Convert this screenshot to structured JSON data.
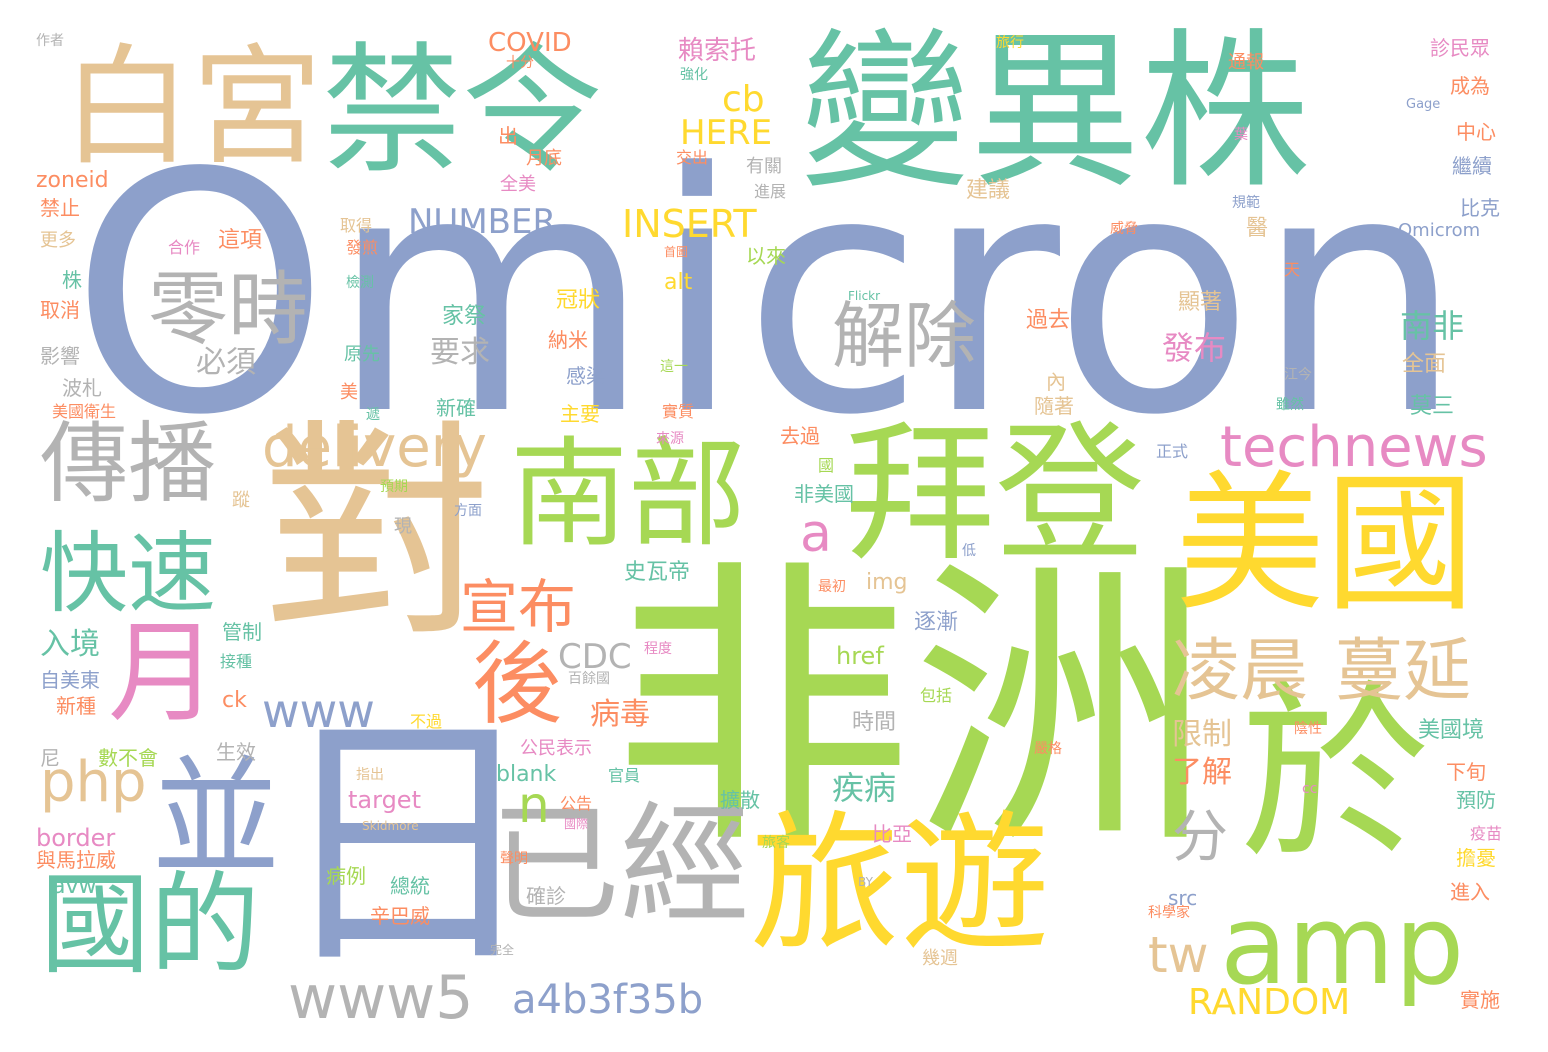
{
  "palette": {
    "teal": "#66c2a5",
    "orange": "#fc8d62",
    "blue": "#8da0cb",
    "pink": "#e78ac3",
    "green": "#a6d854",
    "yellow": "#ffd92f",
    "tan": "#e5c494",
    "gray": "#b3b3b3"
  },
  "words": [
    {
      "text": "Omicron",
      "color": "blue"
    },
    {
      "text": "變異株",
      "color": "teal"
    },
    {
      "text": "禁令",
      "color": "teal"
    },
    {
      "text": "白宮",
      "color": "tan"
    },
    {
      "text": "非洲",
      "color": "green"
    },
    {
      "text": "對",
      "color": "tan"
    },
    {
      "text": "日",
      "color": "blue"
    },
    {
      "text": "美國",
      "color": "yellow"
    },
    {
      "text": "拜登",
      "color": "green"
    },
    {
      "text": "南部",
      "color": "green"
    },
    {
      "text": "旅遊",
      "color": "yellow"
    },
    {
      "text": "於",
      "color": "green"
    },
    {
      "text": "已經",
      "color": "gray"
    },
    {
      "text": "並",
      "color": "blue"
    },
    {
      "text": "國的",
      "color": "teal"
    },
    {
      "text": "傳播",
      "color": "gray"
    },
    {
      "text": "快速",
      "color": "teal"
    },
    {
      "text": "月",
      "color": "pink"
    },
    {
      "text": "amp",
      "color": "green"
    },
    {
      "text": "零時",
      "color": "gray"
    },
    {
      "text": "解除",
      "color": "gray"
    },
    {
      "text": "宣布",
      "color": "orange"
    },
    {
      "text": "後",
      "color": "orange"
    },
    {
      "text": "凌晨",
      "color": "tan"
    },
    {
      "text": "蔓延",
      "color": "tan"
    },
    {
      "text": "technews",
      "color": "pink"
    },
    {
      "text": "delivery",
      "color": "tan"
    },
    {
      "text": "www5",
      "color": "gray"
    },
    {
      "text": "www",
      "color": "blue"
    },
    {
      "text": "php",
      "color": "tan"
    },
    {
      "text": "a4b3f35b",
      "color": "blue"
    },
    {
      "text": "INSERT",
      "color": "yellow"
    },
    {
      "text": "NUMBER",
      "color": "blue"
    },
    {
      "text": "RANDOM",
      "color": "yellow"
    },
    {
      "text": "CDC",
      "color": "gray"
    },
    {
      "text": "cb",
      "color": "yellow"
    },
    {
      "text": "HERE",
      "color": "yellow"
    },
    {
      "text": "tw",
      "color": "tan"
    },
    {
      "text": "分",
      "color": "gray"
    },
    {
      "text": "n",
      "color": "green"
    },
    {
      "text": "a",
      "color": "pink"
    },
    {
      "text": "COVID",
      "color": "orange"
    },
    {
      "text": "賴索托",
      "color": "pink"
    },
    {
      "text": "病毒",
      "color": "orange"
    },
    {
      "text": "疾病",
      "color": "teal"
    },
    {
      "text": "發布",
      "color": "pink"
    },
    {
      "text": "南非",
      "color": "teal"
    },
    {
      "text": "入境",
      "color": "teal"
    },
    {
      "text": "要求",
      "color": "gray"
    },
    {
      "text": "必須",
      "color": "gray"
    },
    {
      "text": "限制",
      "color": "tan"
    },
    {
      "text": "了解",
      "color": "orange"
    },
    {
      "text": "zoneid",
      "color": "orange"
    },
    {
      "text": "target",
      "color": "pink"
    },
    {
      "text": "border",
      "color": "pink"
    },
    {
      "text": "blank",
      "color": "teal"
    },
    {
      "text": "img",
      "color": "tan"
    },
    {
      "text": "href",
      "color": "green"
    },
    {
      "text": "alt",
      "color": "yellow"
    },
    {
      "text": "avw",
      "color": "teal"
    },
    {
      "text": "src",
      "color": "blue"
    },
    {
      "text": "ck",
      "color": "orange"
    },
    {
      "text": "Omicrom",
      "color": "blue"
    },
    {
      "text": "Gage",
      "color": "blue"
    },
    {
      "text": "Flickr",
      "color": "teal"
    },
    {
      "text": "Skidmore",
      "color": "tan"
    },
    {
      "text": "BY",
      "color": "gray"
    },
    {
      "text": "cc",
      "color": "pink"
    },
    {
      "text": "作者",
      "color": "gray"
    },
    {
      "text": "十分",
      "color": "orange"
    },
    {
      "text": "強化",
      "color": "teal"
    },
    {
      "text": "旅行",
      "color": "yellow"
    },
    {
      "text": "通報",
      "color": "orange"
    },
    {
      "text": "診民眾",
      "color": "pink"
    },
    {
      "text": "成為",
      "color": "orange"
    },
    {
      "text": "中心",
      "color": "orange"
    },
    {
      "text": "繼續",
      "color": "blue"
    },
    {
      "text": "比克",
      "color": "blue"
    },
    {
      "text": "出",
      "color": "orange"
    },
    {
      "text": "月底",
      "color": "orange"
    },
    {
      "text": "交出",
      "color": "orange"
    },
    {
      "text": "有關",
      "color": "gray"
    },
    {
      "text": "進展",
      "color": "gray"
    },
    {
      "text": "全美",
      "color": "pink"
    },
    {
      "text": "禁止",
      "color": "orange"
    },
    {
      "text": "更多",
      "color": "tan"
    },
    {
      "text": "合作",
      "color": "pink"
    },
    {
      "text": "這項",
      "color": "orange"
    },
    {
      "text": "取得",
      "color": "tan"
    },
    {
      "text": "發煎",
      "color": "orange"
    },
    {
      "text": "首圖",
      "color": "orange"
    },
    {
      "text": "以來",
      "color": "green"
    },
    {
      "text": "建議",
      "color": "tan"
    },
    {
      "text": "威脅",
      "color": "orange"
    },
    {
      "text": "規範",
      "color": "blue"
    },
    {
      "text": "葉",
      "color": "pink"
    },
    {
      "text": "株",
      "color": "teal"
    },
    {
      "text": "取消",
      "color": "orange"
    },
    {
      "text": "影響",
      "color": "gray"
    },
    {
      "text": "檢測",
      "color": "teal"
    },
    {
      "text": "冠狀",
      "color": "yellow"
    },
    {
      "text": "家祭",
      "color": "teal"
    },
    {
      "text": "納米",
      "color": "orange"
    },
    {
      "text": "原先",
      "color": "teal"
    },
    {
      "text": "感染",
      "color": "blue"
    },
    {
      "text": "這一",
      "color": "green"
    },
    {
      "text": "過去",
      "color": "orange"
    },
    {
      "text": "內",
      "color": "tan"
    },
    {
      "text": "顯著",
      "color": "tan"
    },
    {
      "text": "醫",
      "color": "tan"
    },
    {
      "text": "天",
      "color": "orange"
    },
    {
      "text": "江今",
      "color": "gray"
    },
    {
      "text": "全面",
      "color": "tan"
    },
    {
      "text": "波札",
      "color": "gray"
    },
    {
      "text": "美國衛生",
      "color": "orange"
    },
    {
      "text": "美",
      "color": "orange"
    },
    {
      "text": "遞",
      "color": "teal"
    },
    {
      "text": "新確",
      "color": "teal"
    },
    {
      "text": "主要",
      "color": "yellow"
    },
    {
      "text": "實質",
      "color": "orange"
    },
    {
      "text": "隨著",
      "color": "tan"
    },
    {
      "text": "雖然",
      "color": "teal"
    },
    {
      "text": "莫三",
      "color": "teal"
    },
    {
      "text": "來源",
      "color": "pink"
    },
    {
      "text": "去過",
      "color": "orange"
    },
    {
      "text": "國",
      "color": "green"
    },
    {
      "text": "正式",
      "color": "blue"
    },
    {
      "text": "非美國",
      "color": "teal"
    },
    {
      "text": "預期",
      "color": "green"
    },
    {
      "text": "蹤",
      "color": "tan"
    },
    {
      "text": "方面",
      "color": "blue"
    },
    {
      "text": "現",
      "color": "gray"
    },
    {
      "text": "史瓦帝",
      "color": "teal"
    },
    {
      "text": "低",
      "color": "blue"
    },
    {
      "text": "最初",
      "color": "orange"
    },
    {
      "text": "逐漸",
      "color": "blue"
    },
    {
      "text": "管制",
      "color": "teal"
    },
    {
      "text": "程度",
      "color": "pink"
    },
    {
      "text": "接種",
      "color": "teal"
    },
    {
      "text": "百餘國",
      "color": "gray"
    },
    {
      "text": "自美東",
      "color": "blue"
    },
    {
      "text": "新種",
      "color": "orange"
    },
    {
      "text": "包括",
      "color": "green"
    },
    {
      "text": "不過",
      "color": "yellow"
    },
    {
      "text": "時間",
      "color": "gray"
    },
    {
      "text": "美國境",
      "color": "teal"
    },
    {
      "text": "陰性",
      "color": "orange"
    },
    {
      "text": "尼",
      "color": "gray"
    },
    {
      "text": "生效",
      "color": "gray"
    },
    {
      "text": "數不會",
      "color": "green"
    },
    {
      "text": "公民表示",
      "color": "pink"
    },
    {
      "text": "官員",
      "color": "teal"
    },
    {
      "text": "指出",
      "color": "tan"
    },
    {
      "text": "下旬",
      "color": "orange"
    },
    {
      "text": "擴散",
      "color": "teal"
    },
    {
      "text": "嚴格",
      "color": "orange"
    },
    {
      "text": "預防",
      "color": "teal"
    },
    {
      "text": "公告",
      "color": "orange"
    },
    {
      "text": "國際",
      "color": "pink"
    },
    {
      "text": "比亞",
      "color": "pink"
    },
    {
      "text": "與馬拉威",
      "color": "orange"
    },
    {
      "text": "旅客",
      "color": "green"
    },
    {
      "text": "疫苗",
      "color": "pink"
    },
    {
      "text": "聲明",
      "color": "orange"
    },
    {
      "text": "擔憂",
      "color": "yellow"
    },
    {
      "text": "病例",
      "color": "green"
    },
    {
      "text": "總統",
      "color": "teal"
    },
    {
      "text": "確診",
      "color": "gray"
    },
    {
      "text": "辛巴威",
      "color": "orange"
    },
    {
      "text": "進入",
      "color": "orange"
    },
    {
      "text": "科學家",
      "color": "orange"
    },
    {
      "text": "完全",
      "color": "gray"
    },
    {
      "text": "幾週",
      "color": "tan"
    },
    {
      "text": "實施",
      "color": "orange"
    }
  ]
}
